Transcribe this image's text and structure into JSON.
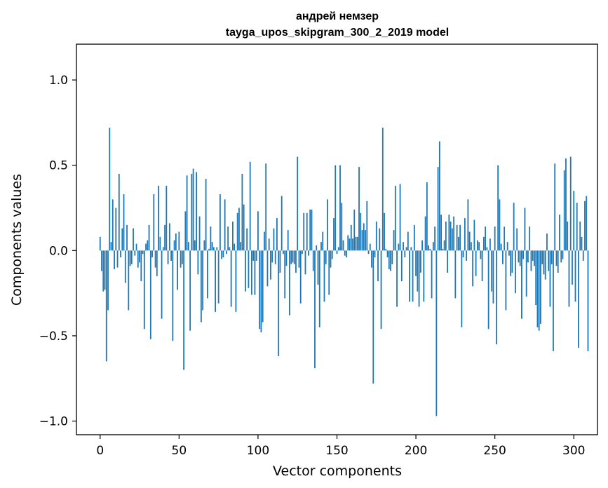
{
  "chart_data": {
    "type": "bar",
    "title": "андрей немзер",
    "subtitle": "tayga_upos_skipgram_300_2_2019 model",
    "xlabel": "Vector components",
    "ylabel": "Components values",
    "xlim": [
      -15,
      315
    ],
    "ylim": [
      -1.08,
      1.21
    ],
    "xticks": [
      0,
      50,
      100,
      150,
      200,
      250,
      300
    ],
    "xtick_labels": [
      "0",
      "50",
      "100",
      "150",
      "200",
      "250",
      "300"
    ],
    "yticks": [
      -1.0,
      -0.5,
      0.0,
      0.5,
      1.0
    ],
    "ytick_labels": [
      "−1.0",
      "−0.5",
      "0.0",
      "0.5",
      "1.0"
    ],
    "grid": false,
    "legend": "none",
    "bar_color": "#1f77b4",
    "values": [
      0.08,
      -0.12,
      -0.24,
      -0.23,
      -0.65,
      -0.35,
      0.72,
      0.05,
      0.3,
      -0.11,
      0.25,
      -0.1,
      0.45,
      -0.04,
      0.13,
      0.33,
      -0.19,
      0.15,
      -0.35,
      -0.09,
      -0.08,
      0.13,
      -0.03,
      0.04,
      -0.1,
      -0.07,
      -0.18,
      -0.02,
      -0.46,
      0.04,
      0.06,
      0.15,
      -0.52,
      -0.04,
      0.33,
      -0.1,
      -0.15,
      0.38,
      0.08,
      -0.4,
      0.02,
      0.15,
      0.38,
      -0.08,
      0.16,
      -0.06,
      -0.53,
      0.06,
      0.1,
      -0.23,
      0.11,
      -0.1,
      -0.08,
      -0.7,
      0.23,
      0.44,
      0.05,
      -0.47,
      0.45,
      0.48,
      0.06,
      0.46,
      -0.14,
      0.2,
      -0.42,
      -0.35,
      0.06,
      0.42,
      -0.28,
      0.01,
      0.14,
      0.05,
      0.02,
      -0.36,
      0.02,
      -0.31,
      0.33,
      -0.05,
      -0.04,
      0.3,
      -0.02,
      0.14,
      0.02,
      -0.33,
      0.17,
      0.04,
      -0.36,
      0.22,
      0.25,
      0.05,
      0.45,
      0.27,
      -0.24,
      0.13,
      -0.22,
      0.52,
      -0.26,
      -0.06,
      -0.26,
      -0.06,
      0.23,
      -0.46,
      -0.48,
      -0.42,
      0.11,
      0.51,
      -0.21,
      0.07,
      -0.17,
      -0.07,
      0.13,
      -0.08,
      0.19,
      -0.62,
      -0.13,
      0.32,
      -0.02,
      -0.28,
      -0.09,
      0.12,
      -0.38,
      -0.08,
      -0.07,
      -0.08,
      -0.13,
      0.55,
      -0.1,
      -0.31,
      -0.02,
      0.22,
      -0.14,
      0.22,
      -0.03,
      0.24,
      0.24,
      -0.12,
      -0.69,
      0.03,
      -0.2,
      -0.45,
      0.05,
      0.11,
      -0.3,
      -0.08,
      0.3,
      -0.26,
      -0.1,
      -0.05,
      0.19,
      0.5,
      -0.02,
      0.02,
      0.5,
      0.28,
      0.06,
      -0.03,
      -0.04,
      0.09,
      0.07,
      0.15,
      0.07,
      0.24,
      0.08,
      0.08,
      0.49,
      0.22,
      0.12,
      0.16,
      0.12,
      0.29,
      -0.02,
      0.04,
      -0.1,
      -0.78,
      -0.04,
      0.17,
      -0.18,
      0.13,
      -0.46,
      0.72,
      0.22,
      0.01,
      -0.04,
      -0.11,
      -0.12,
      -0.08,
      0.12,
      0.38,
      -0.33,
      0.04,
      0.39,
      -0.18,
      0.05,
      -0.04,
      0.02,
      0.11,
      -0.3,
      0.02,
      -0.3,
      0.15,
      -0.15,
      -0.24,
      -0.33,
      -0.13,
      0.06,
      -0.3,
      0.2,
      0.4,
      0.03,
      0.01,
      -0.28,
      0.05,
      0.14,
      -0.97,
      0.49,
      0.64,
      0.21,
      0.01,
      0.06,
      0.17,
      -0.13,
      0.21,
      0.17,
      0.13,
      0.2,
      -0.28,
      0.15,
      0.08,
      0.15,
      -0.45,
      -0.04,
      0.19,
      -0.06,
      0.3,
      0.11,
      0.05,
      -0.21,
      0.18,
      -0.15,
      0.06,
      0.05,
      -0.05,
      -0.18,
      0.08,
      0.14,
      0.02,
      -0.46,
      0.07,
      -0.24,
      -0.31,
      0.14,
      -0.55,
      0.5,
      0.3,
      0.04,
      -0.08,
      0.14,
      -0.35,
      0.05,
      -0.03,
      -0.15,
      -0.13,
      0.28,
      -0.25,
      0.13,
      -0.07,
      -0.09,
      -0.4,
      -0.05,
      0.25,
      -0.27,
      -0.07,
      0.14,
      -0.12,
      -0.06,
      -0.09,
      -0.32,
      -0.45,
      -0.47,
      -0.43,
      -0.08,
      -0.14,
      -0.17,
      0.1,
      -0.12,
      -0.33,
      -0.08,
      -0.59,
      0.51,
      -0.09,
      -0.13,
      0.21,
      -0.07,
      -0.05,
      0.47,
      0.54,
      0.17,
      -0.33,
      0.55,
      -0.2,
      0.35,
      -0.3,
      0.28,
      -0.57,
      0.17,
      0.08,
      -0.06,
      0.29,
      0.32,
      -0.59
    ]
  }
}
